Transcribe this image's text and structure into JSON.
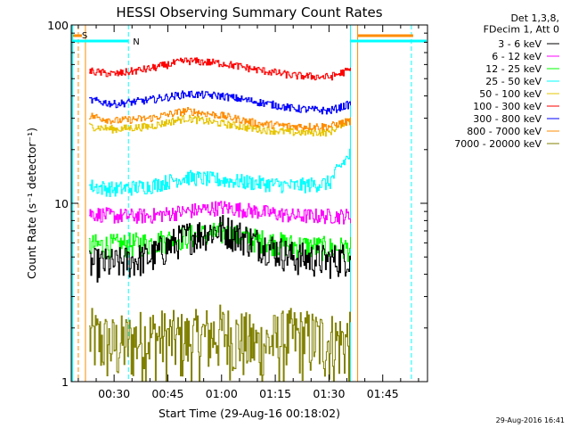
{
  "chart_data": {
    "type": "line",
    "title": "HESSI Observing Summary Count Rates",
    "xlabel": "Start Time (29-Aug-16 00:18:02)",
    "ylabel": "Count Rate (s⁻¹ detector⁻¹)",
    "yscale": "log",
    "ylim": [
      1,
      100
    ],
    "xlim": [
      "00:18:02",
      "01:57:30"
    ],
    "x_ticks": [
      "00:30",
      "00:45",
      "01:00",
      "01:15",
      "01:30",
      "01:45"
    ],
    "y_ticks": [
      "1",
      "10",
      "100"
    ],
    "grid": false,
    "legend_position": "top-right outside",
    "legend_header": [
      "Det 1,3,8,",
      "FDecim 1, Att 0"
    ],
    "series": [
      {
        "name": "3 - 6 keV",
        "color": "#000000",
        "x": [
          "00:23",
          "00:30",
          "00:40",
          "00:50",
          "01:00",
          "01:10",
          "01:20",
          "01:30",
          "01:36"
        ],
        "y": [
          4.6,
          4.6,
          5.0,
          6.5,
          7.2,
          6.0,
          5.0,
          4.8,
          5.0
        ]
      },
      {
        "name": "6 - 12 keV",
        "color": "#ff00ff",
        "x": [
          "00:23",
          "00:30",
          "00:40",
          "00:50",
          "01:00",
          "01:10",
          "01:20",
          "01:30",
          "01:36"
        ],
        "y": [
          8.8,
          8.5,
          8.5,
          9.0,
          9.5,
          9.0,
          8.5,
          8.5,
          8.5
        ]
      },
      {
        "name": "12 - 25 keV",
        "color": "#00ff00",
        "x": [
          "00:23",
          "00:30",
          "00:40",
          "00:50",
          "01:00",
          "01:10",
          "01:20",
          "01:30",
          "01:36"
        ],
        "y": [
          5.8,
          5.8,
          6.0,
          6.5,
          6.8,
          6.2,
          5.8,
          5.6,
          5.6
        ]
      },
      {
        "name": "25 - 50 keV",
        "color": "#00ffff",
        "x": [
          "00:23",
          "00:30",
          "00:40",
          "00:50",
          "01:00",
          "01:10",
          "01:20",
          "01:30",
          "01:36"
        ],
        "y": [
          12.5,
          12.0,
          12.5,
          14.0,
          13.5,
          13.0,
          12.5,
          13.0,
          19.0
        ]
      },
      {
        "name": "50 - 100 keV",
        "color": "#e6c400",
        "x": [
          "00:23",
          "00:30",
          "00:40",
          "00:50",
          "01:00",
          "01:10",
          "01:20",
          "01:30",
          "01:36"
        ],
        "y": [
          27.0,
          26.0,
          27.0,
          30.0,
          28.0,
          26.0,
          25.0,
          25.0,
          30.0
        ]
      },
      {
        "name": "100 - 300 keV",
        "color": "#ff0000",
        "x": [
          "00:23",
          "00:30",
          "00:40",
          "00:50",
          "01:00",
          "01:10",
          "01:20",
          "01:30",
          "01:36"
        ],
        "y": [
          55.0,
          53.0,
          57.0,
          63.0,
          61.0,
          56.0,
          52.0,
          51.0,
          56.0
        ]
      },
      {
        "name": "300 - 800 keV",
        "color": "#0000ff",
        "x": [
          "00:23",
          "00:30",
          "00:40",
          "00:50",
          "01:00",
          "01:10",
          "01:20",
          "01:30",
          "01:36"
        ],
        "y": [
          38.0,
          36.0,
          38.0,
          41.0,
          40.0,
          37.0,
          34.0,
          33.0,
          36.0
        ]
      },
      {
        "name": "800 - 7000 keV",
        "color": "#ff8c00",
        "x": [
          "00:23",
          "00:30",
          "00:40",
          "00:50",
          "01:00",
          "01:10",
          "01:20",
          "01:30",
          "01:36"
        ],
        "y": [
          31.0,
          29.0,
          30.0,
          33.0,
          31.0,
          28.0,
          27.0,
          27.0,
          29.0
        ]
      },
      {
        "name": "7000 - 20000 keV",
        "color": "#808000",
        "x": [
          "00:23",
          "00:30",
          "00:40",
          "00:50",
          "01:00",
          "01:10",
          "01:20",
          "01:30",
          "01:36"
        ],
        "y": [
          1.8,
          1.6,
          1.8,
          1.7,
          1.9,
          1.6,
          1.8,
          1.7,
          1.7
        ]
      }
    ],
    "annotations": [
      {
        "label": "S",
        "color": "#ff8c00"
      },
      {
        "label": "N",
        "color": "#00ffff"
      }
    ],
    "footer": "29-Aug-2016 16:41"
  }
}
